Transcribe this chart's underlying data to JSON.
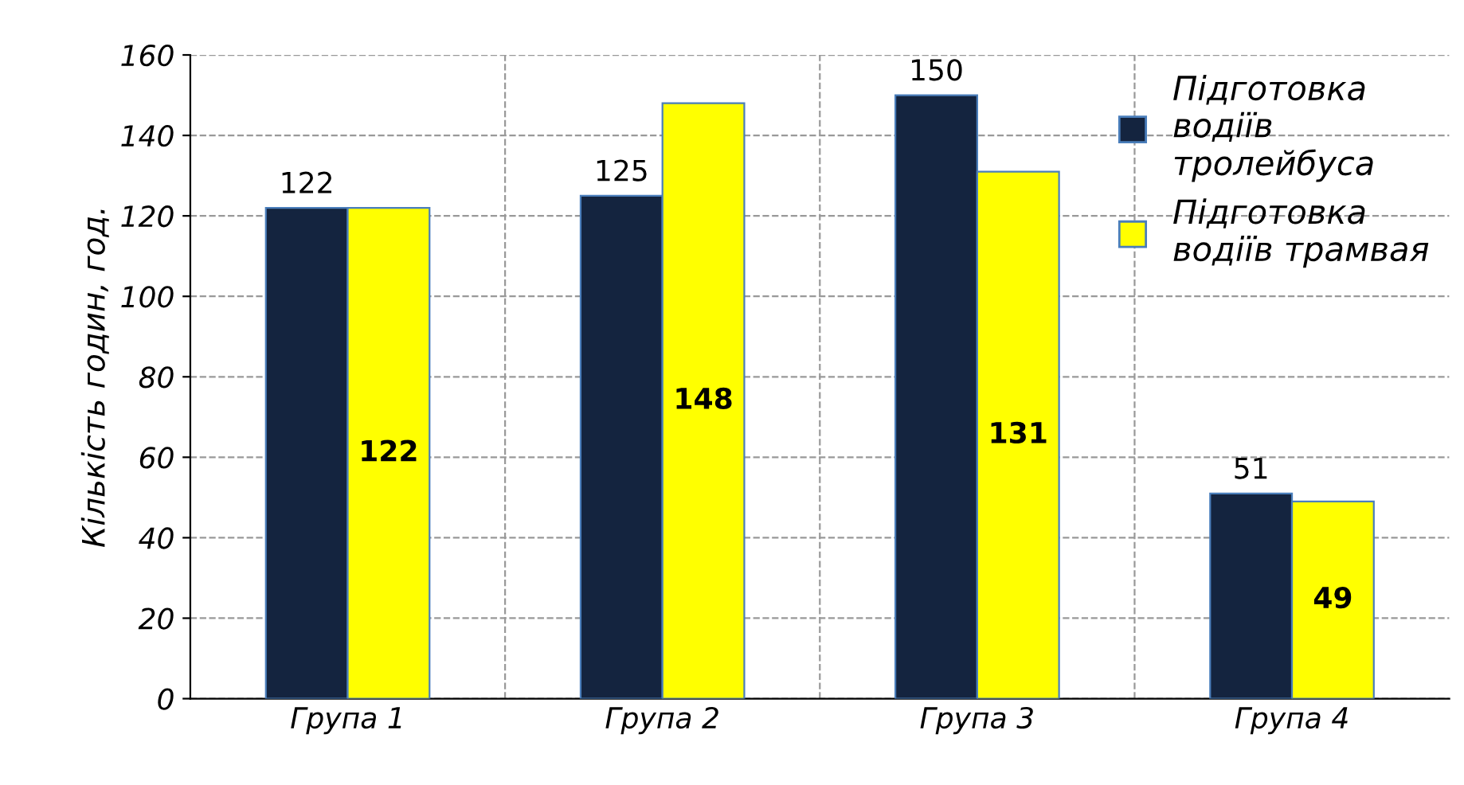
{
  "chart_data": {
    "type": "bar",
    "ylabel": "Кількість годин, год.",
    "categories": [
      "Група 1",
      "Група 2",
      "Група 3",
      "Група 4"
    ],
    "series": [
      {
        "name": "Підготовка водіїв тролейбуса",
        "color": "#14243f",
        "values": [
          122,
          125,
          150,
          51
        ]
      },
      {
        "name": "Підготовка водіїв трамвая",
        "color": "#ffff00",
        "values": [
          122,
          148,
          131,
          49
        ]
      }
    ],
    "ylim": [
      0,
      160
    ],
    "yticks": [
      0,
      20,
      40,
      60,
      80,
      100,
      120,
      140,
      160
    ],
    "grid": true,
    "legend": "top right",
    "data_labels": true
  }
}
